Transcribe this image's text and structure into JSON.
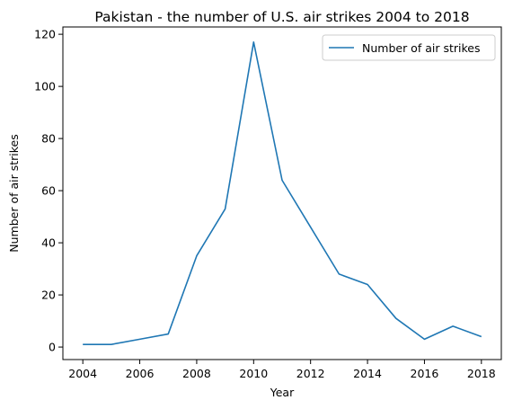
{
  "chart_data": {
    "type": "line",
    "title": "Pakistan - the number of U.S. air strikes 2004 to 2018",
    "xlabel": "Year",
    "ylabel": "Number of air strikes",
    "x": [
      2004,
      2005,
      2006,
      2007,
      2008,
      2009,
      2010,
      2011,
      2012,
      2013,
      2014,
      2015,
      2016,
      2017,
      2018
    ],
    "xticks": [
      "2004",
      "2006",
      "2008",
      "2010",
      "2012",
      "2014",
      "2016",
      "2018"
    ],
    "yticks": [
      "0",
      "20",
      "40",
      "60",
      "80",
      "100",
      "120"
    ],
    "xlim": [
      2003.3,
      2018.7
    ],
    "ylim": [
      -4.8,
      122.8
    ],
    "grid": false,
    "legend_position": "upper right",
    "series": [
      {
        "name": "Number of air strikes",
        "color": "#1f77b4",
        "values": [
          1,
          1,
          3,
          5,
          35,
          53,
          117,
          64,
          46,
          28,
          24,
          11,
          3,
          8,
          4
        ]
      }
    ]
  }
}
